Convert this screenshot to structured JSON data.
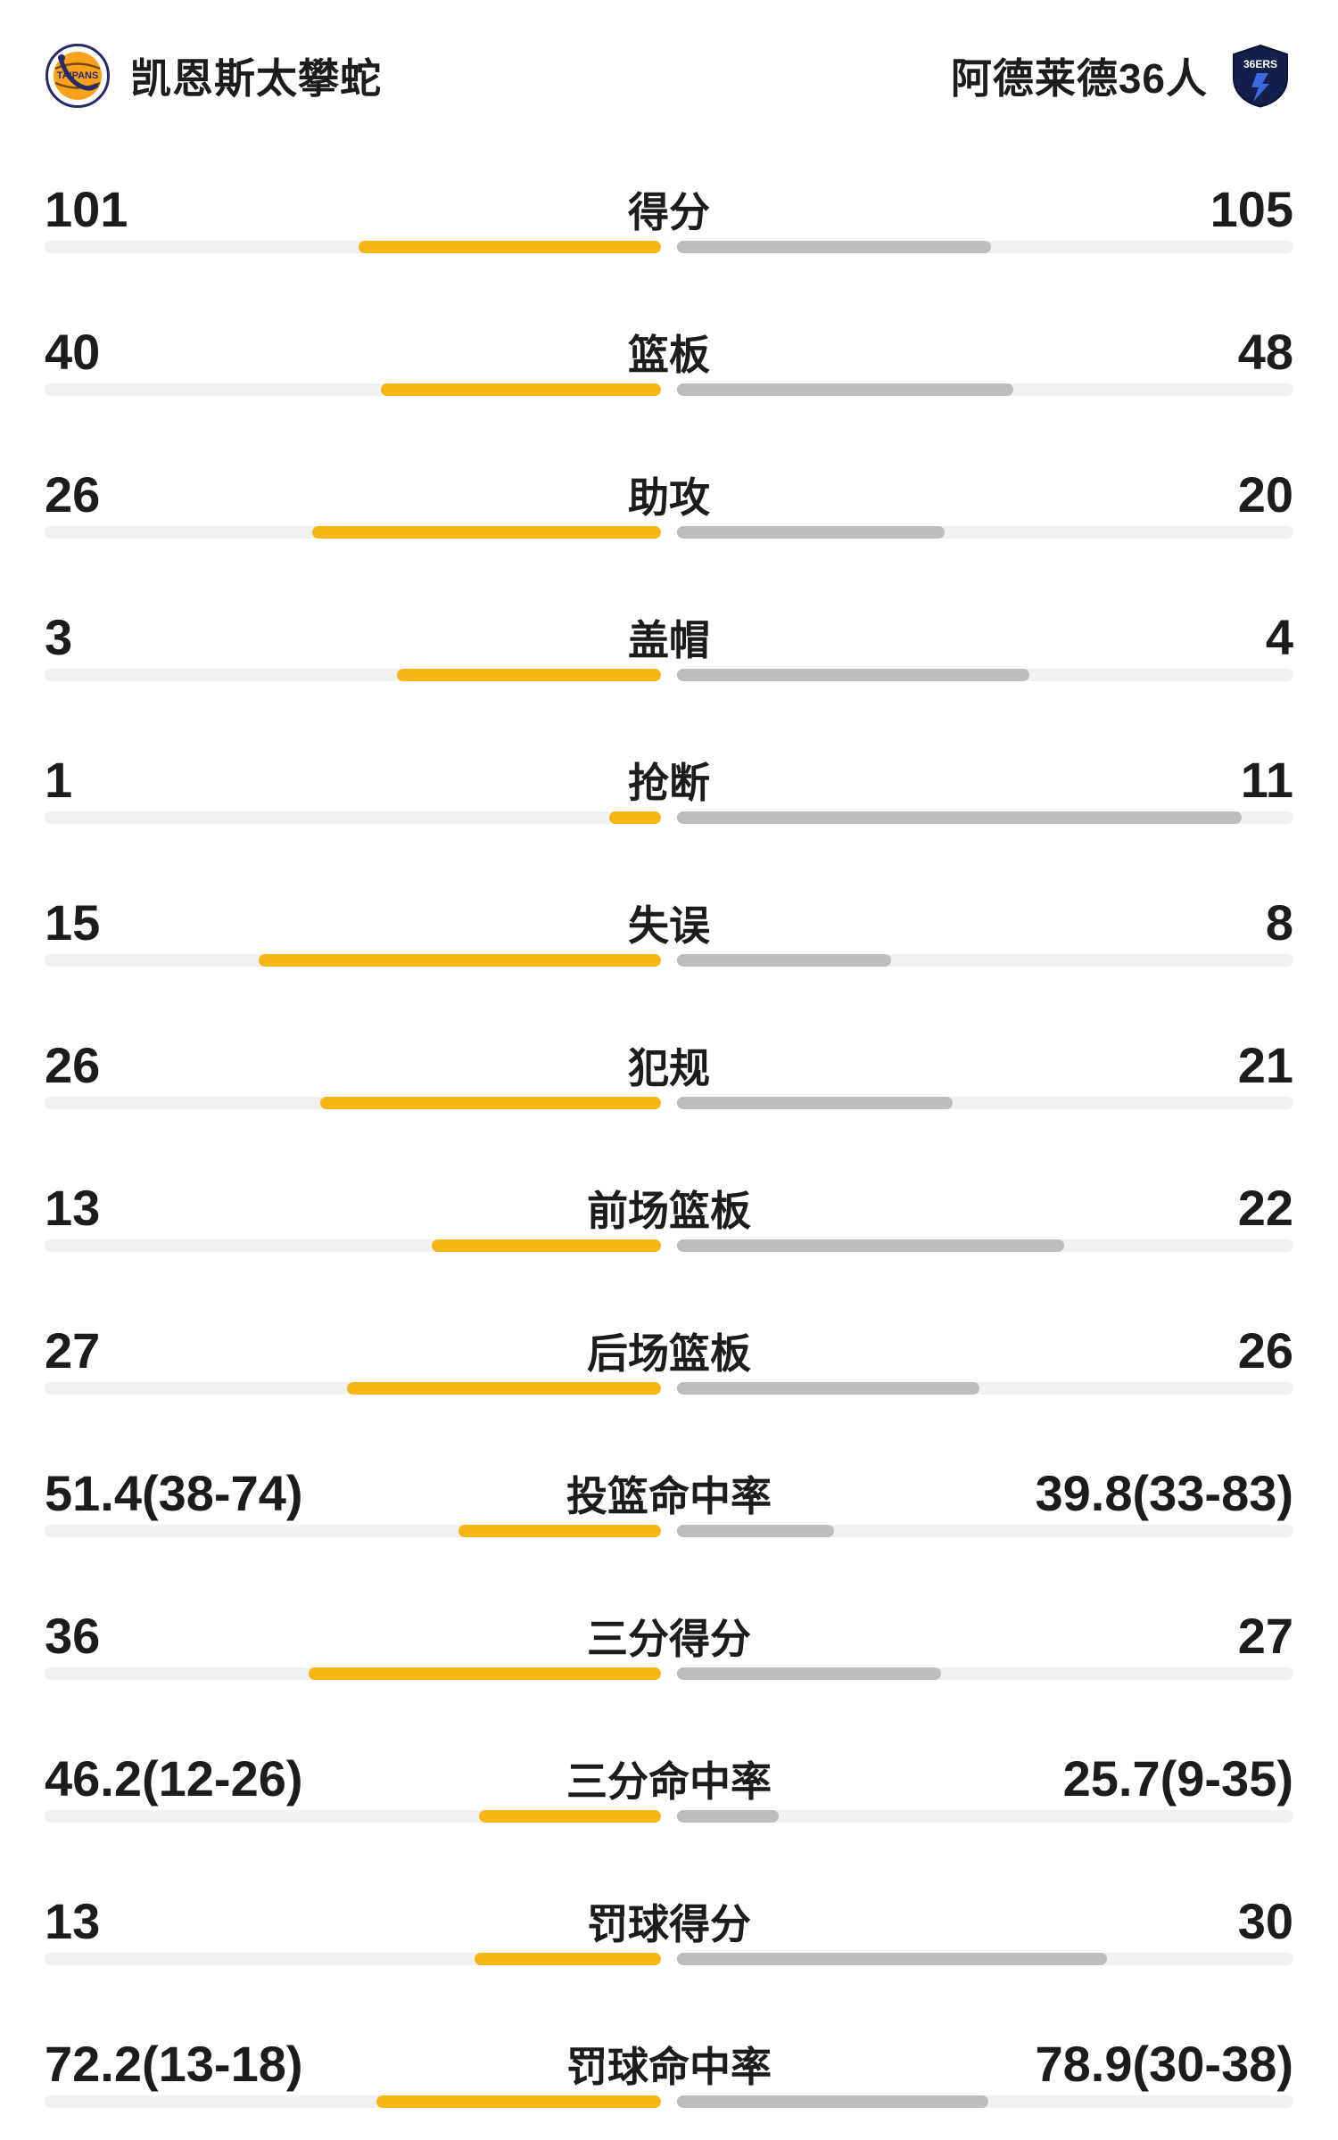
{
  "colors": {
    "left_bar": "#F8B616",
    "right_bar": "#BDBDBD",
    "track": "#F1F1F2",
    "text": "#1B1C1E"
  },
  "header": {
    "left_team": {
      "name": "凯恩斯太攀蛇",
      "logo_text": "TAIPANS"
    },
    "right_team": {
      "name": "阿德莱德36人",
      "logo_text": "36ERS"
    }
  },
  "stats": [
    {
      "label": "得分",
      "type": "count",
      "left_display": "101",
      "right_display": "105",
      "left_value": 101,
      "right_value": 105
    },
    {
      "label": "篮板",
      "type": "count",
      "left_display": "40",
      "right_display": "48",
      "left_value": 40,
      "right_value": 48
    },
    {
      "label": "助攻",
      "type": "count",
      "left_display": "26",
      "right_display": "20",
      "left_value": 26,
      "right_value": 20
    },
    {
      "label": "盖帽",
      "type": "count",
      "left_display": "3",
      "right_display": "4",
      "left_value": 3,
      "right_value": 4
    },
    {
      "label": "抢断",
      "type": "count",
      "left_display": "1",
      "right_display": "11",
      "left_value": 1,
      "right_value": 11
    },
    {
      "label": "失误",
      "type": "count",
      "left_display": "15",
      "right_display": "8",
      "left_value": 15,
      "right_value": 8
    },
    {
      "label": "犯规",
      "type": "count",
      "left_display": "26",
      "right_display": "21",
      "left_value": 26,
      "right_value": 21
    },
    {
      "label": "前场篮板",
      "type": "count",
      "left_display": "13",
      "right_display": "22",
      "left_value": 13,
      "right_value": 22
    },
    {
      "label": "后场篮板",
      "type": "count",
      "left_display": "27",
      "right_display": "26",
      "left_value": 27,
      "right_value": 26
    },
    {
      "label": "投篮命中率",
      "type": "percent",
      "left_display": "51.4(38-74)",
      "right_display": "39.8(33-83)",
      "left_value": 51.4,
      "right_value": 39.8
    },
    {
      "label": "三分得分",
      "type": "count",
      "left_display": "36",
      "right_display": "27",
      "left_value": 36,
      "right_value": 27
    },
    {
      "label": "三分命中率",
      "type": "percent",
      "left_display": "46.2(12-26)",
      "right_display": "25.7(9-35)",
      "left_value": 46.2,
      "right_value": 25.7
    },
    {
      "label": "罚球得分",
      "type": "count",
      "left_display": "13",
      "right_display": "30",
      "left_value": 13,
      "right_value": 30
    },
    {
      "label": "罚球命中率",
      "type": "percent",
      "left_display": "72.2(13-18)",
      "right_display": "78.9(30-38)",
      "left_value": 72.2,
      "right_value": 78.9
    }
  ],
  "chart_data": {
    "type": "bar",
    "orientation": "horizontal-paired",
    "title": "",
    "categories": [
      "得分",
      "篮板",
      "助攻",
      "盖帽",
      "抢断",
      "失误",
      "犯规",
      "前场篮板",
      "后场篮板",
      "投篮命中率",
      "三分得分",
      "三分命中率",
      "罚球得分",
      "罚球命中率"
    ],
    "series": [
      {
        "name": "凯恩斯太攀蛇",
        "color": "#F8B616",
        "values": [
          101,
          40,
          26,
          3,
          1,
          15,
          26,
          13,
          27,
          51.4,
          36,
          46.2,
          13,
          72.2
        ],
        "labels": [
          "101",
          "40",
          "26",
          "3",
          "1",
          "15",
          "26",
          "13",
          "27",
          "51.4(38-74)",
          "36",
          "46.2(12-26)",
          "13",
          "72.2(13-18)"
        ]
      },
      {
        "name": "阿德莱德36人",
        "color": "#BDBDBD",
        "values": [
          105,
          48,
          20,
          4,
          11,
          8,
          21,
          22,
          26,
          39.8,
          27,
          25.7,
          30,
          78.9
        ],
        "labels": [
          "105",
          "48",
          "20",
          "4",
          "11",
          "8",
          "21",
          "22",
          "26",
          "39.8(33-83)",
          "27",
          "25.7(9-35)",
          "30",
          "78.9(30-38)"
        ]
      }
    ],
    "legend_position": "top",
    "grid": false
  }
}
